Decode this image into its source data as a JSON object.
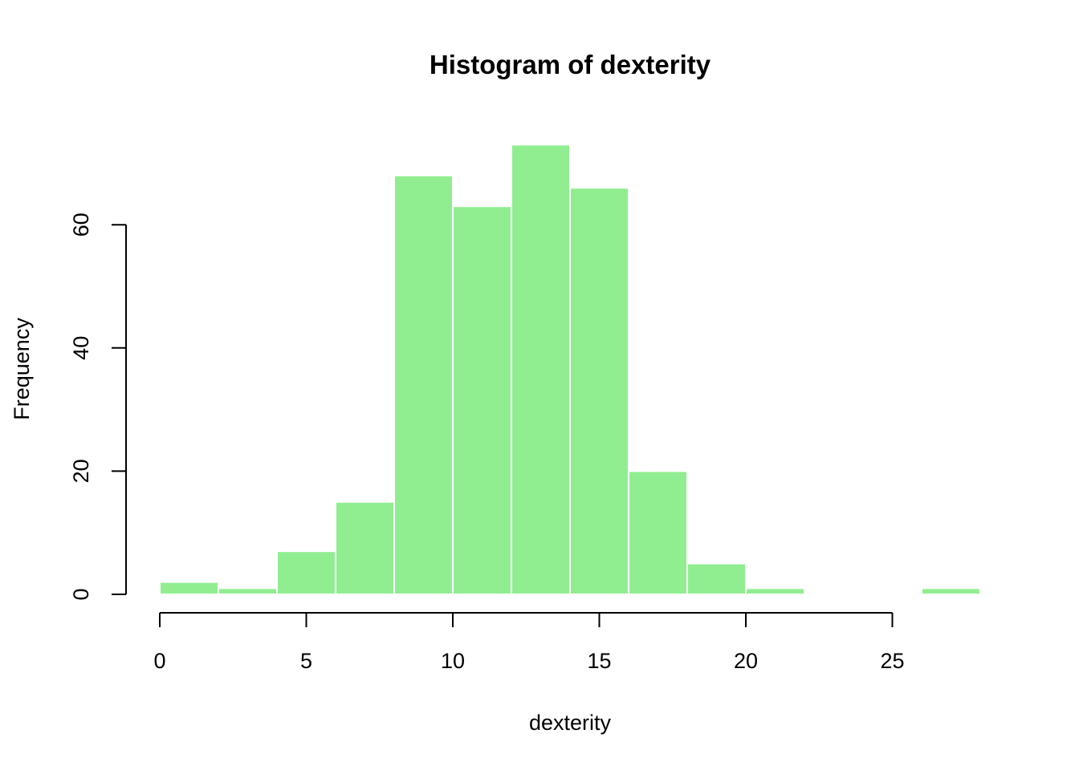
{
  "chart_data": {
    "type": "bar",
    "title": "Histogram of dexterity",
    "xlabel": "dexterity",
    "ylabel": "Frequency",
    "bar_color": "#90ee90",
    "bar_border_color": "#ffffff",
    "bins": [
      {
        "from": 0,
        "to": 2,
        "count": 2
      },
      {
        "from": 2,
        "to": 4,
        "count": 1
      },
      {
        "from": 4,
        "to": 6,
        "count": 7
      },
      {
        "from": 6,
        "to": 8,
        "count": 15
      },
      {
        "from": 8,
        "to": 10,
        "count": 68
      },
      {
        "from": 10,
        "to": 12,
        "count": 63
      },
      {
        "from": 12,
        "to": 14,
        "count": 73
      },
      {
        "from": 14,
        "to": 16,
        "count": 66
      },
      {
        "from": 16,
        "to": 18,
        "count": 20
      },
      {
        "from": 18,
        "to": 20,
        "count": 5
      },
      {
        "from": 20,
        "to": 22,
        "count": 1
      },
      {
        "from": 22,
        "to": 24,
        "count": 0
      },
      {
        "from": 24,
        "to": 26,
        "count": 0
      },
      {
        "from": 26,
        "to": 28,
        "count": 1
      }
    ],
    "xlim": [
      0,
      28
    ],
    "ylim": [
      0,
      73
    ],
    "xticks": [
      0,
      5,
      10,
      15,
      20,
      25
    ],
    "yticks": [
      0,
      20,
      40,
      60
    ],
    "grid": false,
    "legend": "none"
  }
}
